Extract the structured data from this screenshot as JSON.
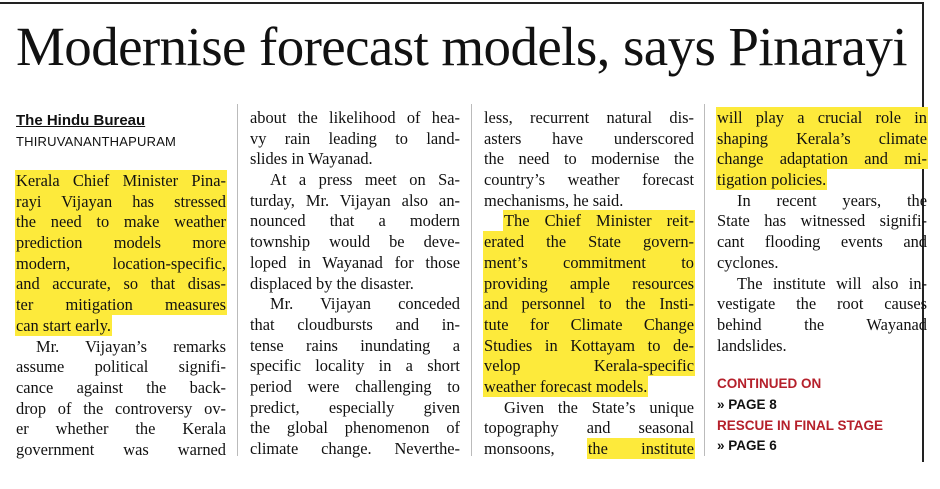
{
  "headline": "Modernise forecast models, says Pinarayi",
  "byline": "The Hindu Bureau",
  "dateline": "THIRUVANANTHAPURAM",
  "columns": [
    {
      "paragraphs": [
        {
          "lines": [
            [
              {
                "text": "Kerala Chief Minister Pina-",
                "highlight": true
              }
            ],
            [
              {
                "text": "rayi Vijayan has stressed",
                "highlight": true
              }
            ],
            [
              {
                "text": "the need to make weather",
                "highlight": true
              }
            ],
            [
              {
                "text": "prediction models more",
                "highlight": true
              }
            ],
            [
              {
                "text": "modern, location-specific,",
                "highlight": true
              }
            ],
            [
              {
                "text": "and accurate, so that disas-",
                "highlight": true
              }
            ],
            [
              {
                "text": "ter mitigation measures",
                "highlight": true
              }
            ],
            [
              {
                "text": "can start early.",
                "highlight": true
              }
            ]
          ]
        },
        {
          "lines": [
            [
              {
                "text": "Mr. Vijayan’s remarks",
                "highlight": false
              }
            ],
            [
              {
                "text": "assume political signifi-",
                "highlight": false
              }
            ],
            [
              {
                "text": "cance against the back-",
                "highlight": false
              }
            ],
            [
              {
                "text": "drop of the controversy ov-",
                "highlight": false
              }
            ],
            [
              {
                "text": "er whether the Kerala",
                "highlight": false
              }
            ],
            [
              {
                "text": "government was warned",
                "highlight": false
              }
            ]
          ]
        }
      ]
    },
    {
      "paragraphs": [
        {
          "lines": [
            [
              {
                "text": "about the likelihood of hea-",
                "highlight": false
              }
            ],
            [
              {
                "text": "vy rain leading to land-",
                "highlight": false
              }
            ],
            [
              {
                "text": "slides in Wayanad.",
                "highlight": false
              }
            ]
          ]
        },
        {
          "lines": [
            [
              {
                "text": "At a press meet on Sa-",
                "highlight": false
              }
            ],
            [
              {
                "text": "turday, Mr. Vijayan also an-",
                "highlight": false
              }
            ],
            [
              {
                "text": "nounced that a modern",
                "highlight": false
              }
            ],
            [
              {
                "text": "township would be deve-",
                "highlight": false
              }
            ],
            [
              {
                "text": "loped in Wayanad for those",
                "highlight": false
              }
            ],
            [
              {
                "text": "displaced by the disaster.",
                "highlight": false
              }
            ]
          ]
        },
        {
          "lines": [
            [
              {
                "text": "Mr. Vijayan conceded",
                "highlight": false
              }
            ],
            [
              {
                "text": "that cloudbursts and in-",
                "highlight": false
              }
            ],
            [
              {
                "text": "tense rains inundating a",
                "highlight": false
              }
            ],
            [
              {
                "text": "specific locality in a short",
                "highlight": false
              }
            ],
            [
              {
                "text": "period were challenging to",
                "highlight": false
              }
            ],
            [
              {
                "text": "predict, especially given",
                "highlight": false
              }
            ],
            [
              {
                "text": "the global phenomenon of",
                "highlight": false
              }
            ],
            [
              {
                "text": "climate change. Neverthe-",
                "highlight": false
              }
            ]
          ]
        }
      ]
    },
    {
      "paragraphs": [
        {
          "lines": [
            [
              {
                "text": "less, recurrent natural dis-",
                "highlight": false
              }
            ],
            [
              {
                "text": "asters have underscored",
                "highlight": false
              }
            ],
            [
              {
                "text": "the need to modernise the",
                "highlight": false
              }
            ],
            [
              {
                "text": "country’s weather forecast",
                "highlight": false
              }
            ],
            [
              {
                "text": "mechanisms, he said.",
                "highlight": false
              }
            ]
          ]
        },
        {
          "lines": [
            [
              {
                "text": "The Chief Minister reit-",
                "highlight": true
              }
            ],
            [
              {
                "text": "erated the State govern-",
                "highlight": true
              }
            ],
            [
              {
                "text": "ment’s commitment to",
                "highlight": true
              }
            ],
            [
              {
                "text": "providing ample resources",
                "highlight": true
              }
            ],
            [
              {
                "text": "and personnel to the Insti-",
                "highlight": true
              }
            ],
            [
              {
                "text": "tute for Climate Change",
                "highlight": true
              }
            ],
            [
              {
                "text": "Studies in Kottayam to de-",
                "highlight": true
              }
            ],
            [
              {
                "text": "velop Kerala-specific",
                "highlight": true
              }
            ],
            [
              {
                "text": "weather forecast models.",
                "highlight": true
              }
            ]
          ]
        },
        {
          "lines": [
            [
              {
                "text": "Given the State’s unique",
                "highlight": false
              }
            ],
            [
              {
                "text": "topography and seasonal",
                "highlight": false
              }
            ],
            [
              {
                "text": "monsoons,",
                "highlight": false
              },
              {
                "text": "the institute",
                "highlight": true
              }
            ]
          ]
        }
      ]
    },
    {
      "paragraphs": [
        {
          "lines": [
            [
              {
                "text": "will play a crucial role in",
                "highlight": true
              }
            ],
            [
              {
                "text": "shaping Kerala’s climate",
                "highlight": true
              }
            ],
            [
              {
                "text": "change adaptation and mi-",
                "highlight": true
              }
            ],
            [
              {
                "text": "tigation policies.",
                "highlight": true
              }
            ]
          ]
        },
        {
          "lines": [
            [
              {
                "text": "In recent years, the",
                "highlight": false
              }
            ],
            [
              {
                "text": "State has witnessed signifi-",
                "highlight": false
              }
            ],
            [
              {
                "text": "cant flooding events and",
                "highlight": false
              }
            ],
            [
              {
                "text": "cyclones.",
                "highlight": false
              }
            ]
          ]
        },
        {
          "lines": [
            [
              {
                "text": "The institute will also in-",
                "highlight": false
              }
            ],
            [
              {
                "text": "vestigate the root causes",
                "highlight": false
              }
            ],
            [
              {
                "text": "behind the Wayanad",
                "highlight": false
              }
            ],
            [
              {
                "text": "landslides.",
                "highlight": false
              }
            ]
          ]
        }
      ]
    }
  ],
  "continuations": [
    {
      "label": "CONTINUED ON",
      "page": "» PAGE 8"
    },
    {
      "label": "RESCUE IN FINAL STAGE",
      "page": "» PAGE 6"
    }
  ]
}
